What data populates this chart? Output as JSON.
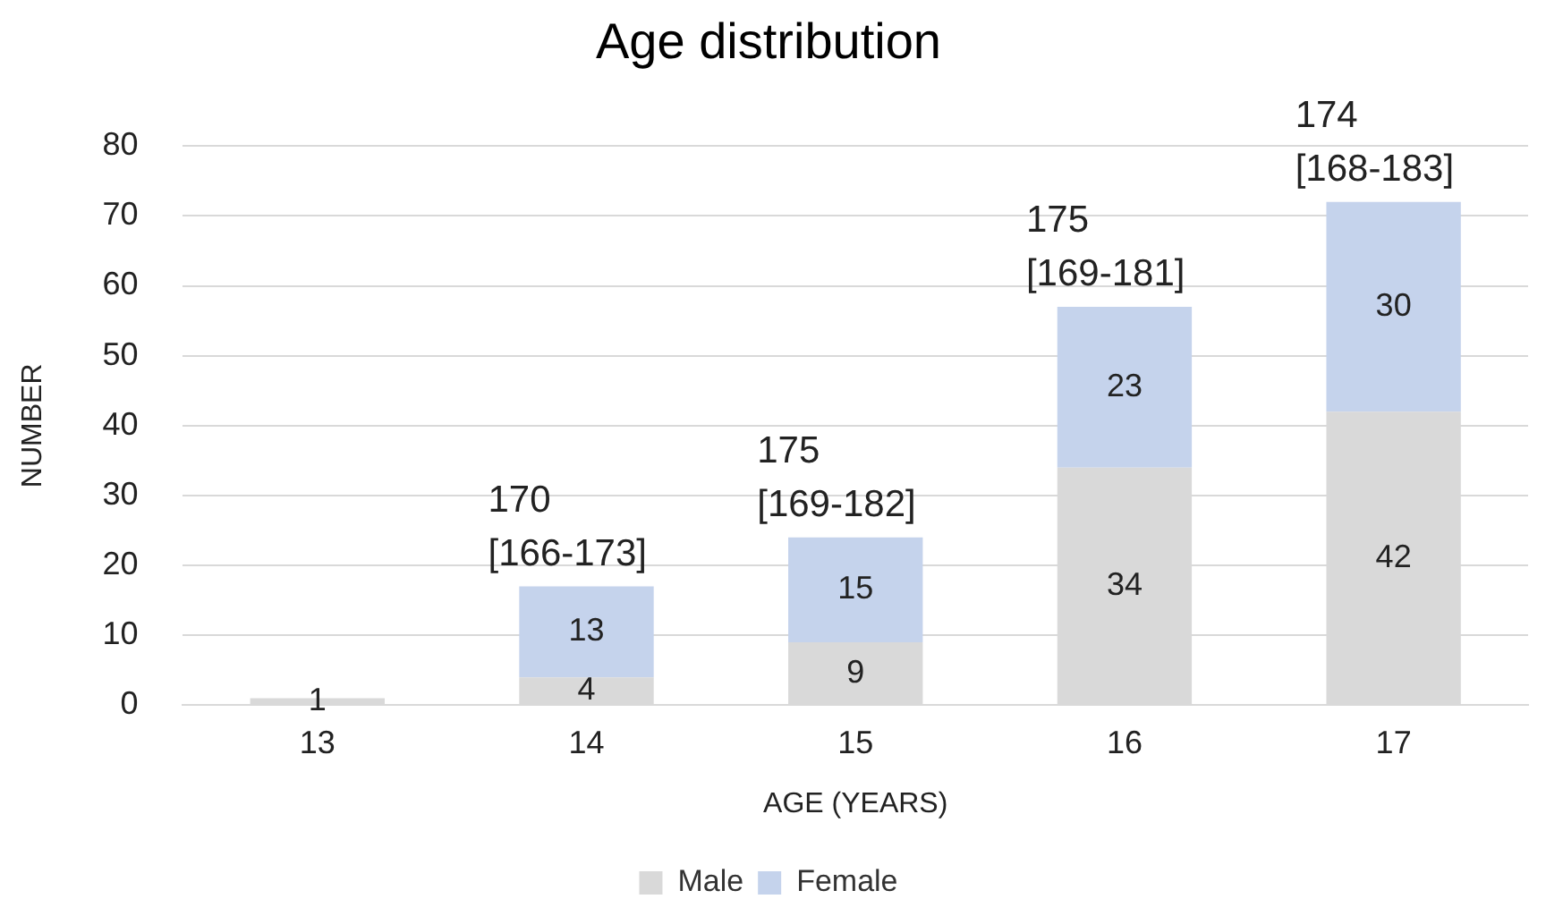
{
  "chart_data": {
    "type": "bar",
    "title": "Age distribution",
    "xlabel": "AGE (YEARS)",
    "ylabel": "NUMBER",
    "categories": [
      "13",
      "14",
      "15",
      "16",
      "17"
    ],
    "stacked": true,
    "series": [
      {
        "name": "Male",
        "color": "#d9d9d9",
        "values": [
          1,
          4,
          9,
          34,
          42
        ],
        "value_labels": [
          "1",
          "4",
          "9",
          "34",
          "42"
        ]
      },
      {
        "name": "Female",
        "color": "#c5d3ec",
        "values": [
          0,
          13,
          15,
          23,
          30
        ],
        "value_labels": [
          null,
          "13",
          "15",
          "23",
          "30"
        ]
      }
    ],
    "ylim": [
      0,
      80
    ],
    "yticks": [
      0,
      10,
      20,
      30,
      40,
      50,
      60,
      70,
      80
    ],
    "grid": "y",
    "legend": "bottom",
    "annotations": [
      {
        "text": "170\n[166-173]",
        "x": "14",
        "y": 17
      },
      {
        "text": "175\n[169-182]",
        "x": "15",
        "y": 24
      },
      {
        "text": "175\n[169-181]",
        "x": "16",
        "y": 57
      },
      {
        "text": "174\n[168-183]",
        "x": "17",
        "y": 72
      }
    ]
  }
}
